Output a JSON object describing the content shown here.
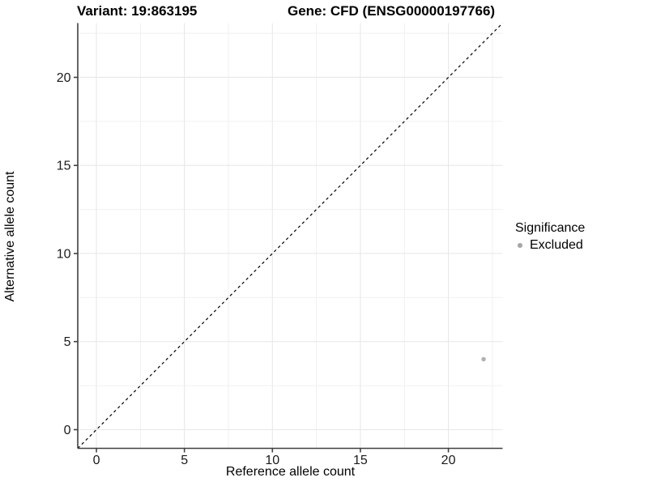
{
  "titles": {
    "variant": "Variant: 19:863195",
    "gene": "Gene: CFD (ENSG00000197766)"
  },
  "chart_data": {
    "type": "scatter",
    "title_left": "Variant: 19:863195",
    "title_right": "Gene: CFD (ENSG00000197766)",
    "xlabel": "Reference allele count",
    "ylabel": "Alternative allele count",
    "xlim": [
      -1.06,
      23.08
    ],
    "ylim": [
      -1.06,
      23.08
    ],
    "x_ticks": [
      0,
      5,
      10,
      15,
      20
    ],
    "y_ticks": [
      0,
      5,
      10,
      15,
      20
    ],
    "x_minor_ticks": [
      2.5,
      7.5,
      12.5,
      17.5,
      22.5
    ],
    "y_minor_ticks": [
      2.5,
      7.5,
      12.5,
      17.5,
      22.5
    ],
    "grid": true,
    "reference_line": {
      "slope": 1,
      "intercept": 0,
      "style": "dashed",
      "color": "#000000"
    },
    "series": [
      {
        "name": "Excluded",
        "color": "#b0b0b0",
        "points": [
          {
            "x": 22,
            "y": 4
          }
        ]
      }
    ],
    "legend": {
      "title": "Significance",
      "position": "right",
      "items": [
        {
          "label": "Excluded",
          "color": "#a6a6a6"
        }
      ]
    }
  },
  "colors": {
    "background": "#ffffff",
    "grid_major": "#e8e8e8",
    "grid_minor": "#efefef",
    "axis_line": "#404040",
    "tick_text": "#1a1a1a",
    "point": "#b0b0b0"
  }
}
